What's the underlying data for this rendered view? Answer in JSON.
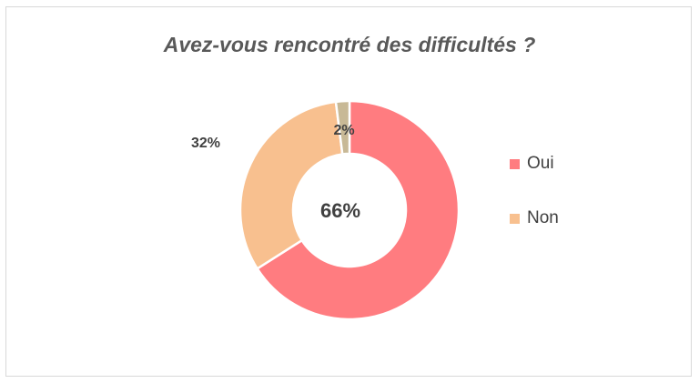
{
  "chart_data": {
    "type": "pie",
    "title": "Avez-vous rencontré des difficultés ?",
    "categories": [
      "Oui",
      "Non",
      ""
    ],
    "values": [
      66,
      32,
      2
    ],
    "labels": [
      "66%",
      "32%",
      "2%"
    ],
    "colors": [
      "#ff7c80",
      "#f8c08f",
      "#c8b996"
    ],
    "donut": true,
    "legend": [
      "Oui",
      "Non"
    ],
    "legend_position": "right"
  }
}
